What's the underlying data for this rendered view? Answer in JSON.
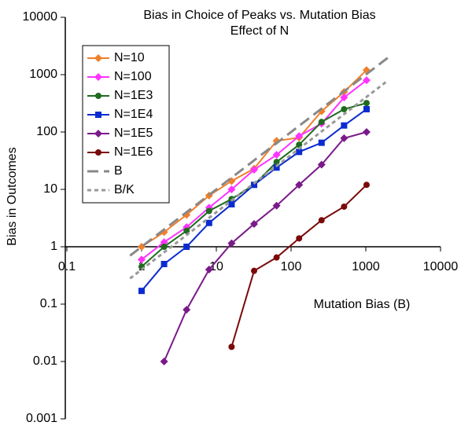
{
  "chart_data": {
    "type": "line",
    "title": "Bias in Choice of Peaks vs. Mutation Bias",
    "subtitle": "Effect of N",
    "x_label": "Mutation Bias (B)",
    "y_label": "Bias in Outcomes",
    "log_x": true,
    "log_y": true,
    "xlim": [
      0.1,
      10000
    ],
    "xticks": [
      0.1,
      1,
      10,
      100,
      1000,
      10000
    ],
    "ylim": [
      0.001,
      10000
    ],
    "yticks": [
      0.001,
      0.01,
      0.1,
      1,
      10,
      100,
      1000,
      10000
    ],
    "x_axis_crosses_at": 1,
    "legend": "top-left",
    "x": [
      1,
      2,
      4,
      8,
      16,
      32,
      64,
      128,
      256,
      512,
      1024
    ],
    "series": [
      {
        "name": "N=10",
        "color": "#f07f2a",
        "marker": "diamond",
        "values": [
          1,
          1.8,
          3.6,
          7.8,
          14,
          23,
          70,
          80,
          230,
          500,
          1200
        ]
      },
      {
        "name": "N=100",
        "color": "#ff33ff",
        "marker": "diamond",
        "values": [
          0.6,
          1.2,
          2.2,
          4.8,
          10,
          22,
          40,
          85,
          140,
          400,
          800
        ]
      },
      {
        "name": "N=1E3",
        "color": "#1f6b1f",
        "marker": "circle",
        "values": [
          0.45,
          1.0,
          1.9,
          4.2,
          6.8,
          12,
          30,
          60,
          150,
          250,
          320
        ]
      },
      {
        "name": "N=1E4",
        "color": "#0b2bd0",
        "marker": "square",
        "values": [
          0.17,
          0.5,
          1.0,
          2.6,
          5.5,
          12,
          24,
          45,
          65,
          130,
          250
        ]
      },
      {
        "name": "N=1E5",
        "color": "#7a1a8a",
        "marker": "diamond",
        "values": [
          null,
          0.01,
          0.08,
          0.4,
          1.15,
          2.5,
          5.2,
          12,
          27,
          78,
          100
        ]
      },
      {
        "name": "N=1E6",
        "color": "#7a0a0a",
        "marker": "circle",
        "values": [
          null,
          null,
          null,
          null,
          0.018,
          0.38,
          0.65,
          1.4,
          2.9,
          5,
          12
        ]
      },
      {
        "name": "B",
        "color": "#888888",
        "style": "dashed",
        "x": [
          0.7,
          2000
        ],
        "values": [
          0.7,
          2000
        ]
      },
      {
        "name": "B/K",
        "color": "#999999",
        "style": "dotted",
        "x": [
          0.7,
          2000
        ],
        "values": [
          0.28,
          800
        ]
      }
    ]
  }
}
